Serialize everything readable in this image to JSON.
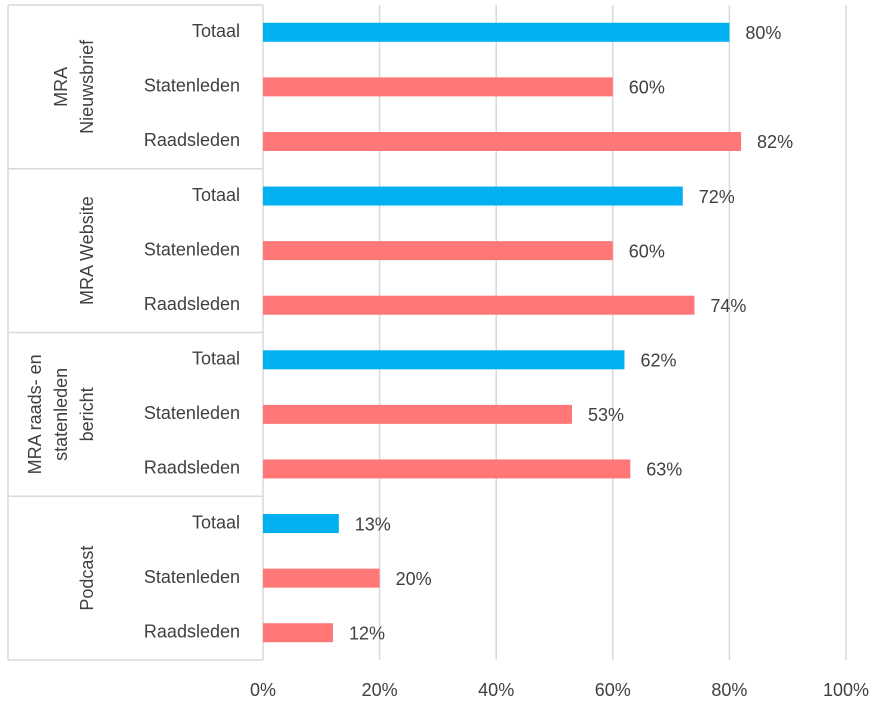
{
  "chart_data": {
    "type": "bar",
    "orientation": "horizontal",
    "groups": [
      {
        "label_lines": [
          "MRA",
          "Nieuwsbrief"
        ],
        "categories": [
          "Totaal",
          "Statenleden",
          "Raadsleden"
        ],
        "values": [
          80,
          60,
          82
        ],
        "value_labels": [
          "80%",
          "60%",
          "82%"
        ],
        "colors": [
          "#00b0f0",
          "#ff7777",
          "#ff7777"
        ]
      },
      {
        "label_lines": [
          "MRA Website"
        ],
        "categories": [
          "Totaal",
          "Statenleden",
          "Raadsleden"
        ],
        "values": [
          72,
          60,
          74
        ],
        "value_labels": [
          "72%",
          "60%",
          "74%"
        ],
        "colors": [
          "#00b0f0",
          "#ff7777",
          "#ff7777"
        ]
      },
      {
        "label_lines": [
          "MRA raads- en",
          "statenleden",
          "bericht"
        ],
        "categories": [
          "Totaal",
          "Statenleden",
          "Raadsleden"
        ],
        "values": [
          62,
          53,
          63
        ],
        "value_labels": [
          "62%",
          "53%",
          "63%"
        ],
        "colors": [
          "#00b0f0",
          "#ff7777",
          "#ff7777"
        ]
      },
      {
        "label_lines": [
          "Podcast"
        ],
        "categories": [
          "Totaal",
          "Statenleden",
          "Raadsleden"
        ],
        "values": [
          13,
          20,
          12
        ],
        "value_labels": [
          "13%",
          "20%",
          "12%"
        ],
        "colors": [
          "#00b0f0",
          "#ff7777",
          "#ff7777"
        ]
      }
    ],
    "xlim": [
      0,
      100
    ],
    "xticks": [
      {
        "value": 0,
        "label": "0%"
      },
      {
        "value": 20,
        "label": "20%"
      },
      {
        "value": 40,
        "label": "40%"
      },
      {
        "value": 60,
        "label": "60%"
      },
      {
        "value": 80,
        "label": "80%"
      },
      {
        "value": 100,
        "label": "100%"
      }
    ],
    "grid": true
  }
}
